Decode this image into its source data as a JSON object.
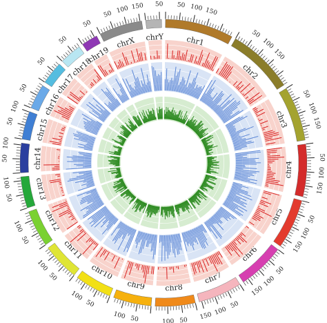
{
  "chromosomes": [
    {
      "name": "chr1",
      "length": 248,
      "color": "#b07a2a"
    },
    {
      "name": "chr2",
      "length": 242,
      "color": "#8b7d2a"
    },
    {
      "name": "chr3",
      "length": 198,
      "color": "#a4a32f"
    },
    {
      "name": "chr4",
      "length": 190,
      "color": "#d42b2b"
    },
    {
      "name": "chr5",
      "length": 181,
      "color": "#e33b2e"
    },
    {
      "name": "chr6",
      "length": 171,
      "color": "#d63fb0"
    },
    {
      "name": "chr7",
      "length": 159,
      "color": "#f5b5bd"
    },
    {
      "name": "chr8",
      "length": 145,
      "color": "#f08a1a"
    },
    {
      "name": "chr9",
      "length": 138,
      "color": "#f6b10e"
    },
    {
      "name": "chr10",
      "length": 134,
      "color": "#f2e016"
    },
    {
      "name": "chr11",
      "length": 135,
      "color": "#dfe535"
    },
    {
      "name": "chr12",
      "length": 133,
      "color": "#7ad131"
    },
    {
      "name": "chr13",
      "length": 114,
      "color": "#25a83a"
    },
    {
      "name": "chr14",
      "length": 107,
      "color": "#2b3f9f"
    },
    {
      "name": "chr15",
      "length": 102,
      "color": "#3f7fd4"
    },
    {
      "name": "chr16",
      "length": 90,
      "color": "#6aa9e8"
    },
    {
      "name": "chr17",
      "length": 83,
      "color": "#55bde0"
    },
    {
      "name": "chr18",
      "length": 80,
      "color": "#b8e6f2"
    },
    {
      "name": "chr19",
      "length": 59,
      "color": "#8e38b4"
    },
    {
      "name": "chrX",
      "length": 156,
      "color": "#8a8a8a"
    },
    {
      "name": "chrY",
      "length": 57,
      "color": "#b5b5b5"
    }
  ],
  "tick_labels": [
    "50",
    "100",
    "150"
  ],
  "tracks": [
    {
      "color": "#d81f1f",
      "background": "#f8d3cc"
    },
    {
      "color": "#5b86d6",
      "background": "#d9e4f5"
    },
    {
      "color": "#2e8b22",
      "background": "#d6ecd0"
    }
  ]
}
